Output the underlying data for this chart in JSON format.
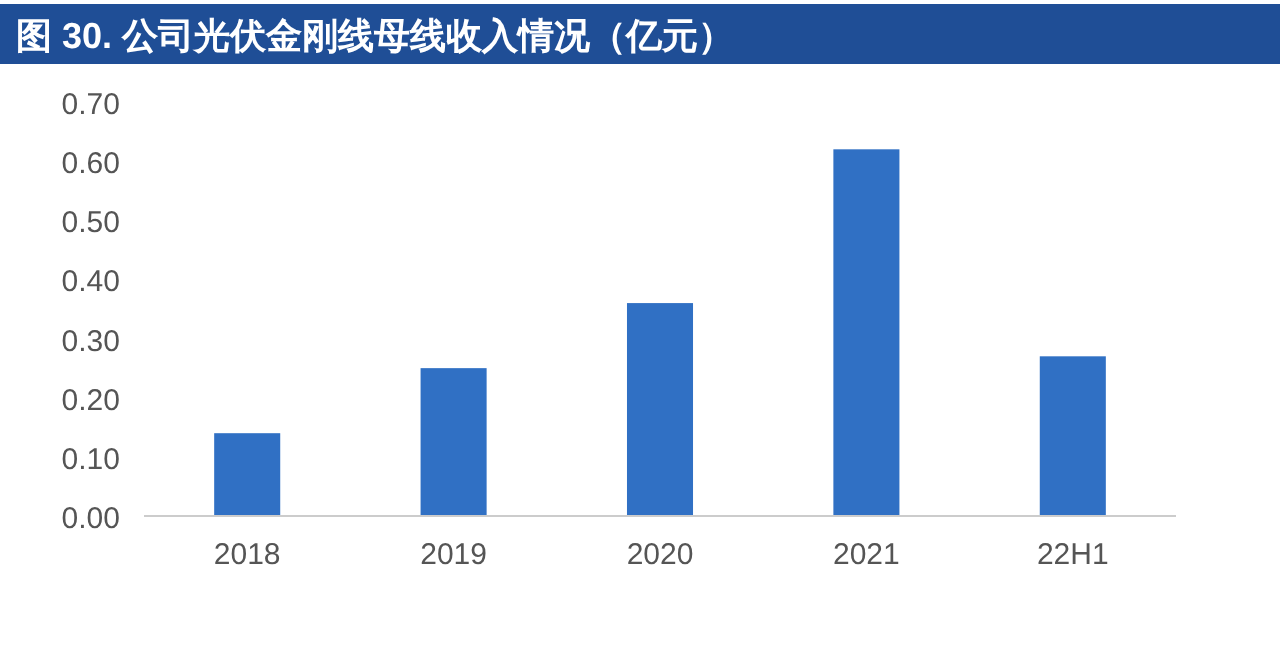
{
  "chart_data": {
    "type": "bar",
    "title": "图 30. 公司光伏金刚线母线收入情况（亿元）",
    "categories": [
      "2018",
      "2019",
      "2020",
      "2021",
      "22H1"
    ],
    "values": [
      0.14,
      0.25,
      0.36,
      0.62,
      0.27
    ],
    "color": "#3070c4",
    "ylim": [
      0,
      0.7
    ],
    "yticks": [
      {
        "value": 0,
        "label": "0.00"
      },
      {
        "value": 0.1,
        "label": "0.10"
      },
      {
        "value": 0.2,
        "label": "0.20"
      },
      {
        "value": 0.3,
        "label": "0.30"
      },
      {
        "value": 0.4,
        "label": "0.40"
      },
      {
        "value": 0.5,
        "label": "0.50"
      },
      {
        "value": 0.6,
        "label": "0.60"
      },
      {
        "value": 0.7,
        "label": "0.70"
      }
    ],
    "grid": false
  }
}
